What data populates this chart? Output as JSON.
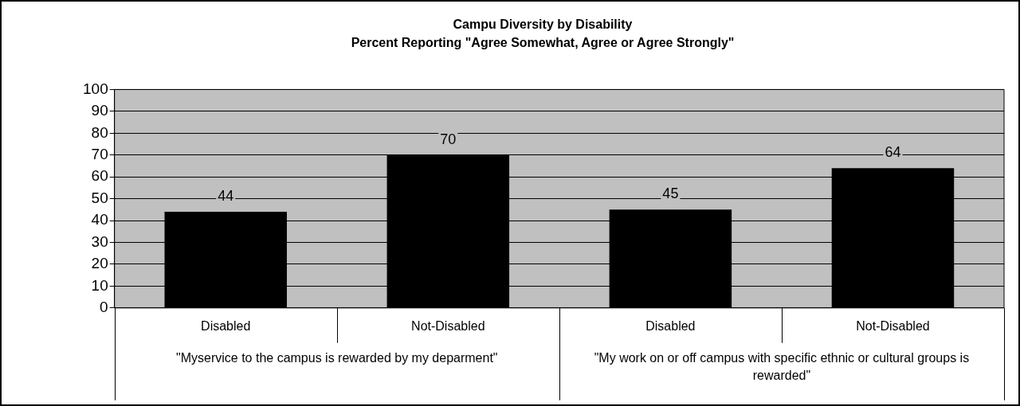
{
  "chart_data": {
    "type": "bar",
    "title": "Campu Diversity by Disability",
    "subtitle": "Percent Reporting \"Agree Somewhat, Agree or Agree Strongly\"",
    "categories": [
      "Disabled",
      "Not-Disabled",
      "Disabled",
      "Not-Disabled"
    ],
    "values": [
      44,
      70,
      45,
      64
    ],
    "color": "#000000",
    "ylim": [
      0,
      100
    ],
    "yticks": [
      0,
      10,
      20,
      30,
      40,
      50,
      60,
      70,
      80,
      90,
      100
    ],
    "grid": "y",
    "data_labels": true,
    "legend": false,
    "annotations": [
      "\"Myservice to the campus is rewarded by my deparment\"",
      "\"My work on or off campus with specific ethnic or cultural groups is rewarded\""
    ]
  }
}
